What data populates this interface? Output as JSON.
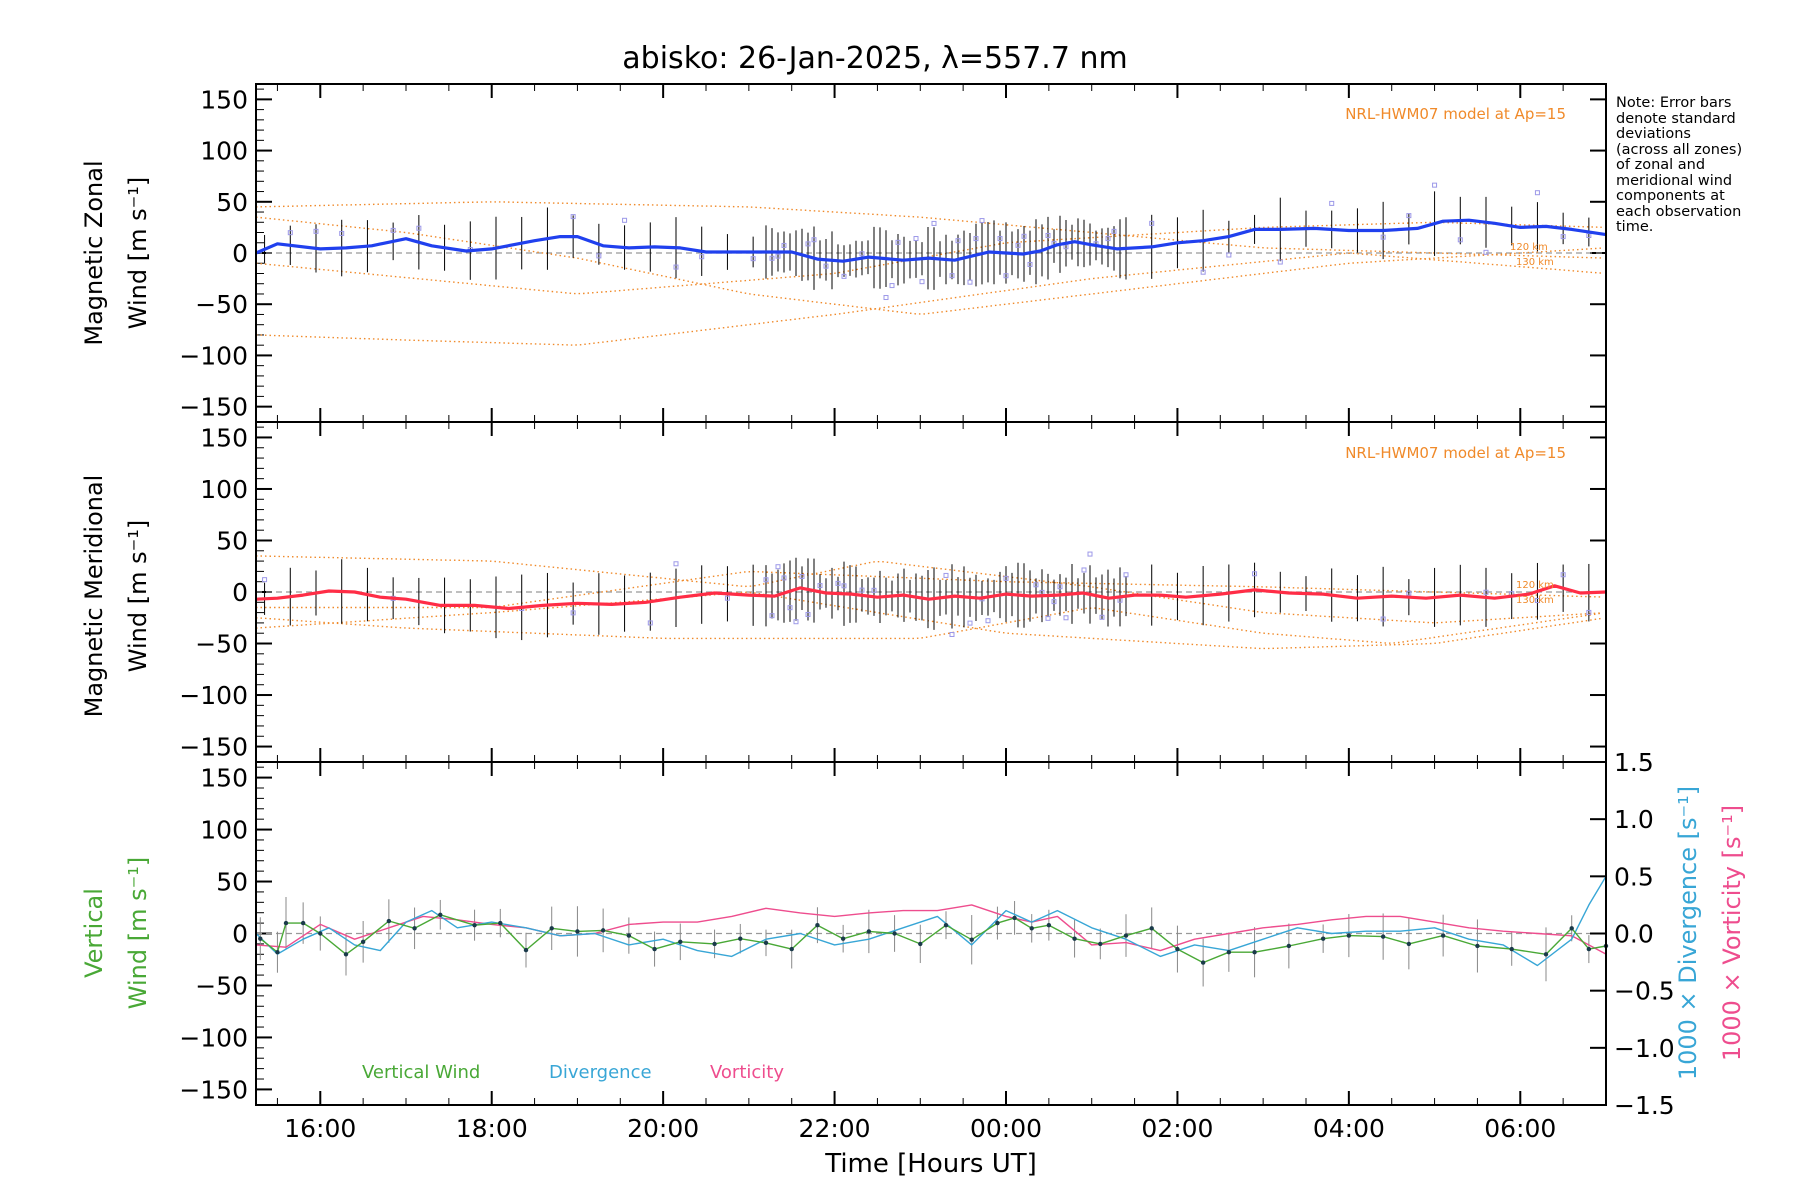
{
  "figure": {
    "title": "abisko: 26-Jan-2025, λ=557.7 nm",
    "note_lines": [
      "Note: Error bars",
      "denote standard",
      "deviations",
      "(across all zones)",
      "of zonal and",
      "meridional wind",
      "components at",
      "each observation",
      "time."
    ],
    "xlabel": "Time [Hours UT]",
    "x_ticks": [
      "16:00",
      "18:00",
      "20:00",
      "22:00",
      "00:00",
      "02:00",
      "04:00",
      "06:00"
    ],
    "colors": {
      "zonal": "#2040ee",
      "zonal_late": "#4aa0ff",
      "meridional": "#ff2d46",
      "model": "#f08a2a",
      "zone_points": "#9c98e8",
      "error_bar": "#000000",
      "vertical_wind": "#49a836",
      "divergence": "#38a6d6",
      "vorticity": "#ee4d8e",
      "dashed_zero": "#999999"
    }
  },
  "chart_data": [
    {
      "id": "zonal",
      "type": "line",
      "ylabel_lines": [
        "Magnetic Zonal",
        "Wind [m s⁻¹]"
      ],
      "model_label": "NRL-HWM07 model at Ap=15",
      "model_height_labels": [
        "120 km",
        "130 km"
      ],
      "xlim": [
        15.25,
        31.0
      ],
      "ylim": [
        -165,
        165
      ],
      "y_ticks": [
        "150",
        "100",
        "50",
        "0",
        "−50",
        "−100",
        "−150"
      ],
      "y_tick_values": [
        150,
        100,
        50,
        0,
        -50,
        -100,
        -150
      ],
      "grid": false,
      "series": [
        {
          "role": "mean_wind",
          "x": [
            15.25,
            15.5,
            16.0,
            16.3,
            16.6,
            17.0,
            17.3,
            17.7,
            18.0,
            18.5,
            18.8,
            19.0,
            19.3,
            19.6,
            19.9,
            20.2,
            20.5,
            20.8,
            21.2,
            21.5,
            21.8,
            22.1,
            22.4,
            22.8,
            23.1,
            23.4,
            23.6,
            23.8,
            24.0,
            24.2,
            24.4,
            24.6,
            24.8,
            25.0,
            25.3,
            25.7,
            26.0,
            26.3,
            26.6,
            26.9,
            27.2,
            27.6,
            28.0,
            28.4,
            28.8,
            29.1,
            29.4,
            29.7,
            30.0,
            30.3,
            30.6,
            31.0
          ],
          "y": [
            0,
            9,
            4,
            5,
            7,
            14,
            7,
            2,
            4,
            12,
            16,
            16,
            7,
            5,
            6,
            5,
            1,
            1,
            1,
            1,
            -6,
            -8,
            -4,
            -7,
            -5,
            -7,
            -3,
            1,
            0,
            -1,
            2,
            8,
            11,
            8,
            4,
            6,
            10,
            12,
            16,
            23,
            23,
            24,
            22,
            22,
            24,
            31,
            32,
            29,
            25,
            26,
            23,
            18
          ]
        }
      ]
    },
    {
      "id": "meridional",
      "type": "line",
      "ylabel_lines": [
        "Magnetic Meridional",
        "Wind [m s⁻¹]"
      ],
      "model_label": "NRL-HWM07 model at Ap=15",
      "model_height_labels": [
        "120 km",
        "130 km"
      ],
      "xlim": [
        15.25,
        31.0
      ],
      "ylim": [
        -165,
        165
      ],
      "y_ticks": [
        "150",
        "100",
        "50",
        "0",
        "−50",
        "−100",
        "−150"
      ],
      "y_tick_values": [
        150,
        100,
        50,
        0,
        -50,
        -100,
        -150
      ],
      "grid": false,
      "series": [
        {
          "role": "mean_wind",
          "x": [
            15.25,
            15.5,
            15.8,
            16.1,
            16.4,
            16.7,
            17.0,
            17.4,
            17.8,
            18.2,
            18.6,
            19.0,
            19.4,
            19.8,
            20.2,
            20.6,
            21.0,
            21.3,
            21.6,
            21.9,
            22.2,
            22.5,
            22.8,
            23.1,
            23.4,
            23.7,
            24.0,
            24.3,
            24.6,
            24.9,
            25.2,
            25.5,
            25.8,
            26.1,
            26.5,
            26.9,
            27.3,
            27.7,
            28.1,
            28.5,
            28.9,
            29.3,
            29.7,
            30.1,
            30.4,
            30.7,
            31.0
          ],
          "y": [
            -7,
            -6,
            -3,
            1,
            0,
            -5,
            -7,
            -13,
            -13,
            -16,
            -13,
            -11,
            -12,
            -10,
            -5,
            -1,
            -3,
            -4,
            4,
            -1,
            -2,
            -5,
            -3,
            -7,
            -4,
            -6,
            -2,
            -4,
            -3,
            -1,
            -6,
            -3,
            -3,
            -5,
            -2,
            2,
            -1,
            -2,
            -6,
            -4,
            -6,
            -3,
            -6,
            -2,
            6,
            -1,
            0
          ]
        }
      ]
    },
    {
      "id": "vertical",
      "type": "line",
      "ylabel_lines": [
        "Vertical",
        "Wind [m s⁻¹]"
      ],
      "y2label_lines": [
        "1000 × Divergence [s⁻¹]",
        "1000 × Vorticity [s⁻¹]"
      ],
      "legend": [
        "Vertical Wind",
        "Divergence",
        "Vorticity"
      ],
      "legend_placement": "bottom-left",
      "xlim": [
        15.25,
        31.0
      ],
      "ylim": [
        -165,
        165
      ],
      "y_ticks": [
        "150",
        "100",
        "50",
        "0",
        "−50",
        "−100",
        "−150"
      ],
      "y_tick_values": [
        150,
        100,
        50,
        0,
        -50,
        -100,
        -150
      ],
      "y2lim": [
        -1.5,
        1.5
      ],
      "y2_ticks": [
        "1.5",
        "1.0",
        "0.5",
        "0.0",
        "−0.5",
        "−1.0",
        "−1.5"
      ],
      "y2_tick_values": [
        1.5,
        1.0,
        0.5,
        0.0,
        -0.5,
        -1.0,
        -1.5
      ],
      "grid": false,
      "series": [
        {
          "name": "Vertical Wind",
          "x": [
            15.3,
            15.5,
            15.6,
            15.8,
            16.0,
            16.3,
            16.5,
            16.8,
            17.1,
            17.4,
            17.8,
            18.1,
            18.4,
            18.7,
            19.0,
            19.3,
            19.6,
            19.9,
            20.2,
            20.6,
            20.9,
            21.2,
            21.5,
            21.8,
            22.1,
            22.4,
            22.7,
            23.0,
            23.3,
            23.6,
            23.9,
            24.1,
            24.3,
            24.5,
            24.8,
            25.1,
            25.4,
            25.7,
            26.0,
            26.3,
            26.6,
            26.9,
            27.3,
            27.7,
            28.0,
            28.4,
            28.7,
            29.1,
            29.5,
            29.9,
            30.3,
            30.6,
            30.8,
            31.0
          ],
          "y": [
            -5,
            -18,
            10,
            10,
            0,
            -20,
            -8,
            12,
            5,
            18,
            8,
            10,
            -16,
            5,
            2,
            3,
            -2,
            -15,
            -8,
            -10,
            -5,
            -9,
            -15,
            8,
            -5,
            2,
            0,
            -10,
            8,
            -6,
            10,
            15,
            5,
            8,
            -5,
            -10,
            -2,
            5,
            -15,
            -28,
            -18,
            -18,
            -12,
            -5,
            -2,
            -3,
            -10,
            -2,
            -12,
            -15,
            -20,
            5,
            -15,
            -12
          ]
        },
        {
          "name": "Divergence",
          "x": [
            15.25,
            15.5,
            15.8,
            16.1,
            16.4,
            16.7,
            17.0,
            17.3,
            17.6,
            18.0,
            18.4,
            18.8,
            19.2,
            19.6,
            20.0,
            20.4,
            20.8,
            21.2,
            21.6,
            22.0,
            22.4,
            22.8,
            23.2,
            23.6,
            24.0,
            24.3,
            24.6,
            25.0,
            25.4,
            25.8,
            26.2,
            26.6,
            27.0,
            27.4,
            27.8,
            28.2,
            28.6,
            29.0,
            29.4,
            29.8,
            30.2,
            30.6,
            30.8,
            31.0
          ],
          "y": [
            0.0,
            -0.18,
            -0.05,
            0.05,
            -0.1,
            -0.15,
            0.1,
            0.2,
            0.05,
            0.1,
            0.05,
            -0.02,
            0.0,
            -0.1,
            -0.05,
            -0.15,
            -0.2,
            -0.05,
            0.0,
            -0.1,
            -0.05,
            0.05,
            0.15,
            -0.1,
            0.2,
            0.1,
            0.2,
            0.05,
            -0.05,
            -0.2,
            -0.1,
            -0.15,
            -0.05,
            0.05,
            0.0,
            0.02,
            0.02,
            0.05,
            -0.05,
            -0.1,
            -0.28,
            -0.05,
            0.25,
            0.5
          ]
        },
        {
          "name": "Vorticity",
          "x": [
            15.25,
            15.6,
            16.0,
            16.4,
            16.8,
            17.2,
            17.6,
            18.0,
            18.4,
            18.8,
            19.2,
            19.6,
            20.0,
            20.4,
            20.8,
            21.2,
            21.6,
            22.0,
            22.4,
            22.8,
            23.2,
            23.6,
            24.0,
            24.3,
            24.6,
            25.0,
            25.4,
            25.8,
            26.2,
            26.6,
            27.0,
            27.4,
            27.8,
            28.2,
            28.6,
            29.0,
            29.4,
            29.8,
            30.2,
            30.6,
            31.0
          ],
          "y": [
            -0.1,
            -0.12,
            0.08,
            -0.05,
            0.05,
            0.15,
            0.12,
            0.08,
            0.05,
            -0.02,
            0.0,
            0.08,
            0.1,
            0.1,
            0.15,
            0.22,
            0.18,
            0.15,
            0.18,
            0.2,
            0.2,
            0.25,
            0.15,
            0.1,
            0.15,
            -0.1,
            -0.08,
            -0.15,
            -0.05,
            0.0,
            0.05,
            0.08,
            0.12,
            0.15,
            0.15,
            0.1,
            0.05,
            0.02,
            0.0,
            -0.02,
            -0.18
          ]
        }
      ]
    }
  ]
}
